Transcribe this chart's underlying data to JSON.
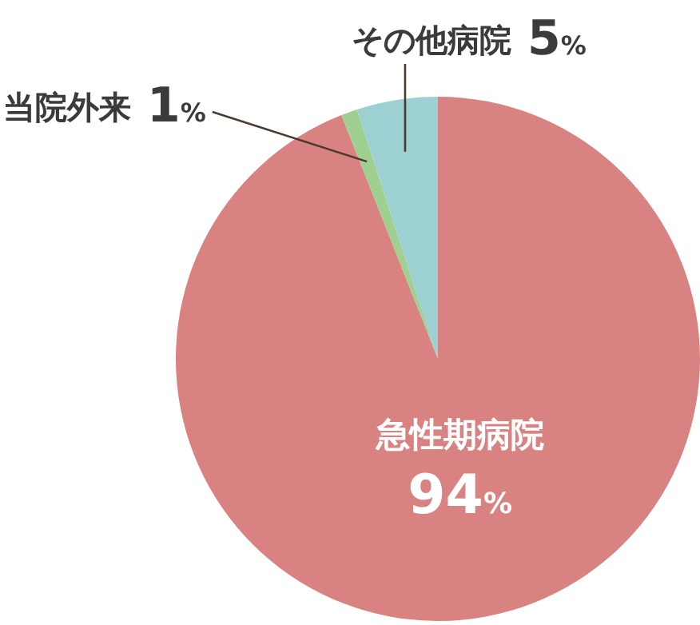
{
  "chart_data": {
    "type": "pie",
    "categories": [
      "急性期病院",
      "当院外来",
      "その他病院"
    ],
    "values": [
      94,
      1,
      5
    ],
    "colors": [
      "#d98282",
      "#9fd08f",
      "#9dd0d2"
    ],
    "value_labels": [
      "94%",
      "1%",
      "5%"
    ],
    "legend": false
  }
}
